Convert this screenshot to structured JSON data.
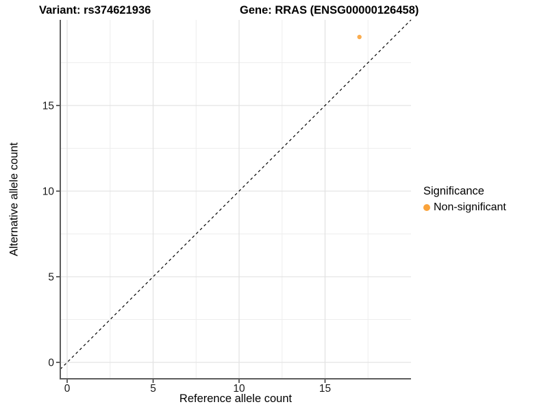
{
  "header": {
    "variant_title": "Variant: rs374621936",
    "gene_title": "Gene: RRAS (ENSG00000126458)"
  },
  "chart_data": {
    "type": "scatter",
    "xlabel": "Reference allele count",
    "ylabel": "Alternative allele count",
    "xlim": [
      -0.4,
      20
    ],
    "ylim": [
      -0.96,
      20
    ],
    "x_ticks": [
      0,
      5,
      10,
      15
    ],
    "y_ticks": [
      0,
      5,
      10,
      15
    ],
    "x_minor_ticks": [
      2.5,
      7.5,
      12.5,
      17.5
    ],
    "y_minor_ticks": [
      2.5,
      7.5,
      12.5,
      17.5
    ],
    "grid": "major+minor",
    "reference_line": {
      "type": "identity",
      "slope": 1,
      "intercept": 0,
      "line_style": "dashed",
      "color": "#000000"
    },
    "series": [
      {
        "name": "Non-significant",
        "color": "#FAA33B",
        "marker": "circle",
        "points": [
          {
            "x": 17,
            "y": 19
          }
        ]
      }
    ],
    "legend": {
      "title": "Significance",
      "position": "right",
      "entries": [
        {
          "label": "Non-significant",
          "color": "#FAA33B"
        }
      ]
    }
  }
}
